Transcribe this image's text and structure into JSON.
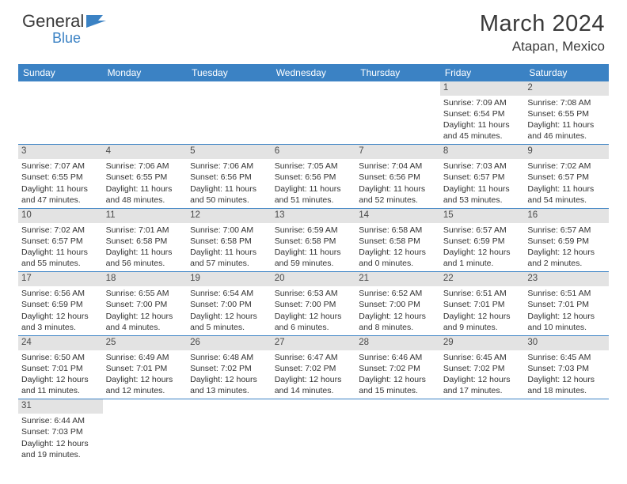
{
  "brand": {
    "part1": "General",
    "part2": "Blue",
    "accent_color": "#3b82c4"
  },
  "title": "March 2024",
  "location": "Atapan, Mexico",
  "colors": {
    "header_bg": "#3b82c4",
    "header_text": "#ffffff",
    "daynum_bg": "#e3e3e3",
    "text": "#3a3a3a",
    "cell_border": "#3b82c4"
  },
  "day_headers": [
    "Sunday",
    "Monday",
    "Tuesday",
    "Wednesday",
    "Thursday",
    "Friday",
    "Saturday"
  ],
  "weeks": [
    [
      {
        "blank": true
      },
      {
        "blank": true
      },
      {
        "blank": true
      },
      {
        "blank": true
      },
      {
        "blank": true
      },
      {
        "n": "1",
        "sunrise": "7:09 AM",
        "sunset": "6:54 PM",
        "daylight": "11 hours and 45 minutes."
      },
      {
        "n": "2",
        "sunrise": "7:08 AM",
        "sunset": "6:55 PM",
        "daylight": "11 hours and 46 minutes."
      }
    ],
    [
      {
        "n": "3",
        "sunrise": "7:07 AM",
        "sunset": "6:55 PM",
        "daylight": "11 hours and 47 minutes."
      },
      {
        "n": "4",
        "sunrise": "7:06 AM",
        "sunset": "6:55 PM",
        "daylight": "11 hours and 48 minutes."
      },
      {
        "n": "5",
        "sunrise": "7:06 AM",
        "sunset": "6:56 PM",
        "daylight": "11 hours and 50 minutes."
      },
      {
        "n": "6",
        "sunrise": "7:05 AM",
        "sunset": "6:56 PM",
        "daylight": "11 hours and 51 minutes."
      },
      {
        "n": "7",
        "sunrise": "7:04 AM",
        "sunset": "6:56 PM",
        "daylight": "11 hours and 52 minutes."
      },
      {
        "n": "8",
        "sunrise": "7:03 AM",
        "sunset": "6:57 PM",
        "daylight": "11 hours and 53 minutes."
      },
      {
        "n": "9",
        "sunrise": "7:02 AM",
        "sunset": "6:57 PM",
        "daylight": "11 hours and 54 minutes."
      }
    ],
    [
      {
        "n": "10",
        "sunrise": "7:02 AM",
        "sunset": "6:57 PM",
        "daylight": "11 hours and 55 minutes."
      },
      {
        "n": "11",
        "sunrise": "7:01 AM",
        "sunset": "6:58 PM",
        "daylight": "11 hours and 56 minutes."
      },
      {
        "n": "12",
        "sunrise": "7:00 AM",
        "sunset": "6:58 PM",
        "daylight": "11 hours and 57 minutes."
      },
      {
        "n": "13",
        "sunrise": "6:59 AM",
        "sunset": "6:58 PM",
        "daylight": "11 hours and 59 minutes."
      },
      {
        "n": "14",
        "sunrise": "6:58 AM",
        "sunset": "6:58 PM",
        "daylight": "12 hours and 0 minutes."
      },
      {
        "n": "15",
        "sunrise": "6:57 AM",
        "sunset": "6:59 PM",
        "daylight": "12 hours and 1 minute."
      },
      {
        "n": "16",
        "sunrise": "6:57 AM",
        "sunset": "6:59 PM",
        "daylight": "12 hours and 2 minutes."
      }
    ],
    [
      {
        "n": "17",
        "sunrise": "6:56 AM",
        "sunset": "6:59 PM",
        "daylight": "12 hours and 3 minutes."
      },
      {
        "n": "18",
        "sunrise": "6:55 AM",
        "sunset": "7:00 PM",
        "daylight": "12 hours and 4 minutes."
      },
      {
        "n": "19",
        "sunrise": "6:54 AM",
        "sunset": "7:00 PM",
        "daylight": "12 hours and 5 minutes."
      },
      {
        "n": "20",
        "sunrise": "6:53 AM",
        "sunset": "7:00 PM",
        "daylight": "12 hours and 6 minutes."
      },
      {
        "n": "21",
        "sunrise": "6:52 AM",
        "sunset": "7:00 PM",
        "daylight": "12 hours and 8 minutes."
      },
      {
        "n": "22",
        "sunrise": "6:51 AM",
        "sunset": "7:01 PM",
        "daylight": "12 hours and 9 minutes."
      },
      {
        "n": "23",
        "sunrise": "6:51 AM",
        "sunset": "7:01 PM",
        "daylight": "12 hours and 10 minutes."
      }
    ],
    [
      {
        "n": "24",
        "sunrise": "6:50 AM",
        "sunset": "7:01 PM",
        "daylight": "12 hours and 11 minutes."
      },
      {
        "n": "25",
        "sunrise": "6:49 AM",
        "sunset": "7:01 PM",
        "daylight": "12 hours and 12 minutes."
      },
      {
        "n": "26",
        "sunrise": "6:48 AM",
        "sunset": "7:02 PM",
        "daylight": "12 hours and 13 minutes."
      },
      {
        "n": "27",
        "sunrise": "6:47 AM",
        "sunset": "7:02 PM",
        "daylight": "12 hours and 14 minutes."
      },
      {
        "n": "28",
        "sunrise": "6:46 AM",
        "sunset": "7:02 PM",
        "daylight": "12 hours and 15 minutes."
      },
      {
        "n": "29",
        "sunrise": "6:45 AM",
        "sunset": "7:02 PM",
        "daylight": "12 hours and 17 minutes."
      },
      {
        "n": "30",
        "sunrise": "6:45 AM",
        "sunset": "7:03 PM",
        "daylight": "12 hours and 18 minutes."
      }
    ],
    [
      {
        "n": "31",
        "sunrise": "6:44 AM",
        "sunset": "7:03 PM",
        "daylight": "12 hours and 19 minutes."
      },
      {
        "blank": true
      },
      {
        "blank": true
      },
      {
        "blank": true
      },
      {
        "blank": true
      },
      {
        "blank": true
      },
      {
        "blank": true
      }
    ]
  ],
  "labels": {
    "sunrise": "Sunrise:",
    "sunset": "Sunset:",
    "daylight": "Daylight:"
  }
}
